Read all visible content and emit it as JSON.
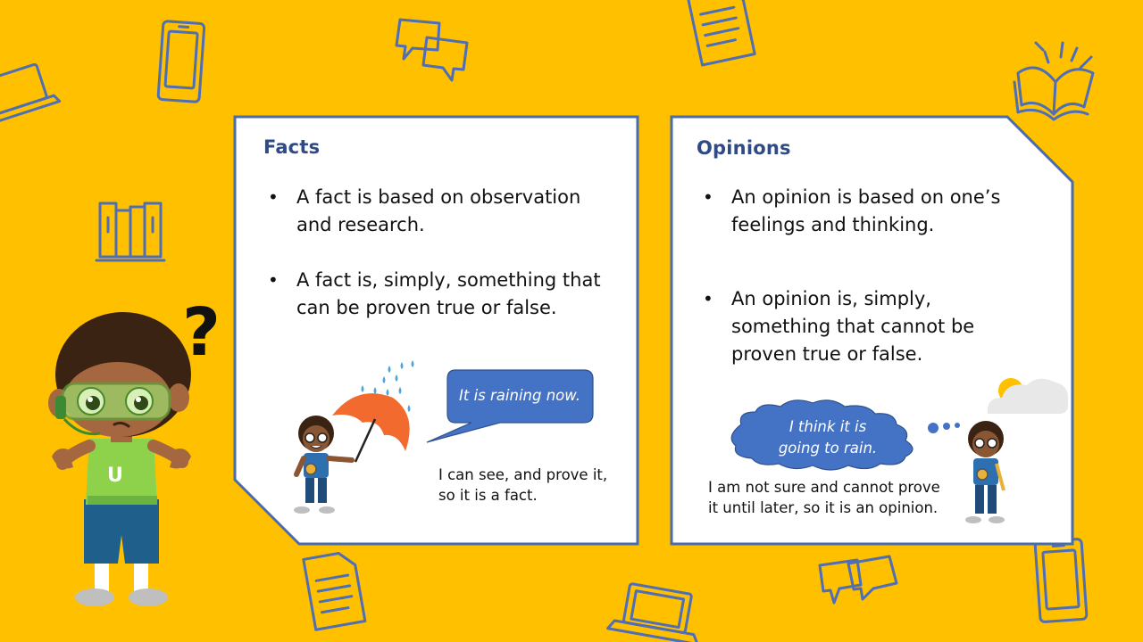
{
  "facts": {
    "title": "Facts",
    "bullets": [
      "A fact is based on observation and research.",
      "A fact is, simply, something that can be proven true or false."
    ],
    "speech": "It is raining now.",
    "caption_line1": "I can see, and prove it,",
    "caption_line2": "so it is a fact."
  },
  "opinions": {
    "title": "Opinions",
    "bullets": [
      "An opinion is based on one’s feelings and thinking.",
      "An opinion is, simply, something that cannot be proven true or false."
    ],
    "thought_line1": "I think it is",
    "thought_line2": "going to rain.",
    "caption_line1": "I am not sure and cannot prove",
    "caption_line2": "it until later, so it is an opinion."
  },
  "colors": {
    "background": "#FFC000",
    "card_border": "#4A6DA8",
    "title": "#2F4A85",
    "bubble": "#4472C4",
    "umbrella": "#F26A2E",
    "doodle": "#4F6EB5"
  },
  "icons": [
    "tablet-icon",
    "laptop-icon",
    "chat-bubbles-icon",
    "document-icon",
    "open-book-icon",
    "books-icon",
    "question-mark-icon"
  ]
}
